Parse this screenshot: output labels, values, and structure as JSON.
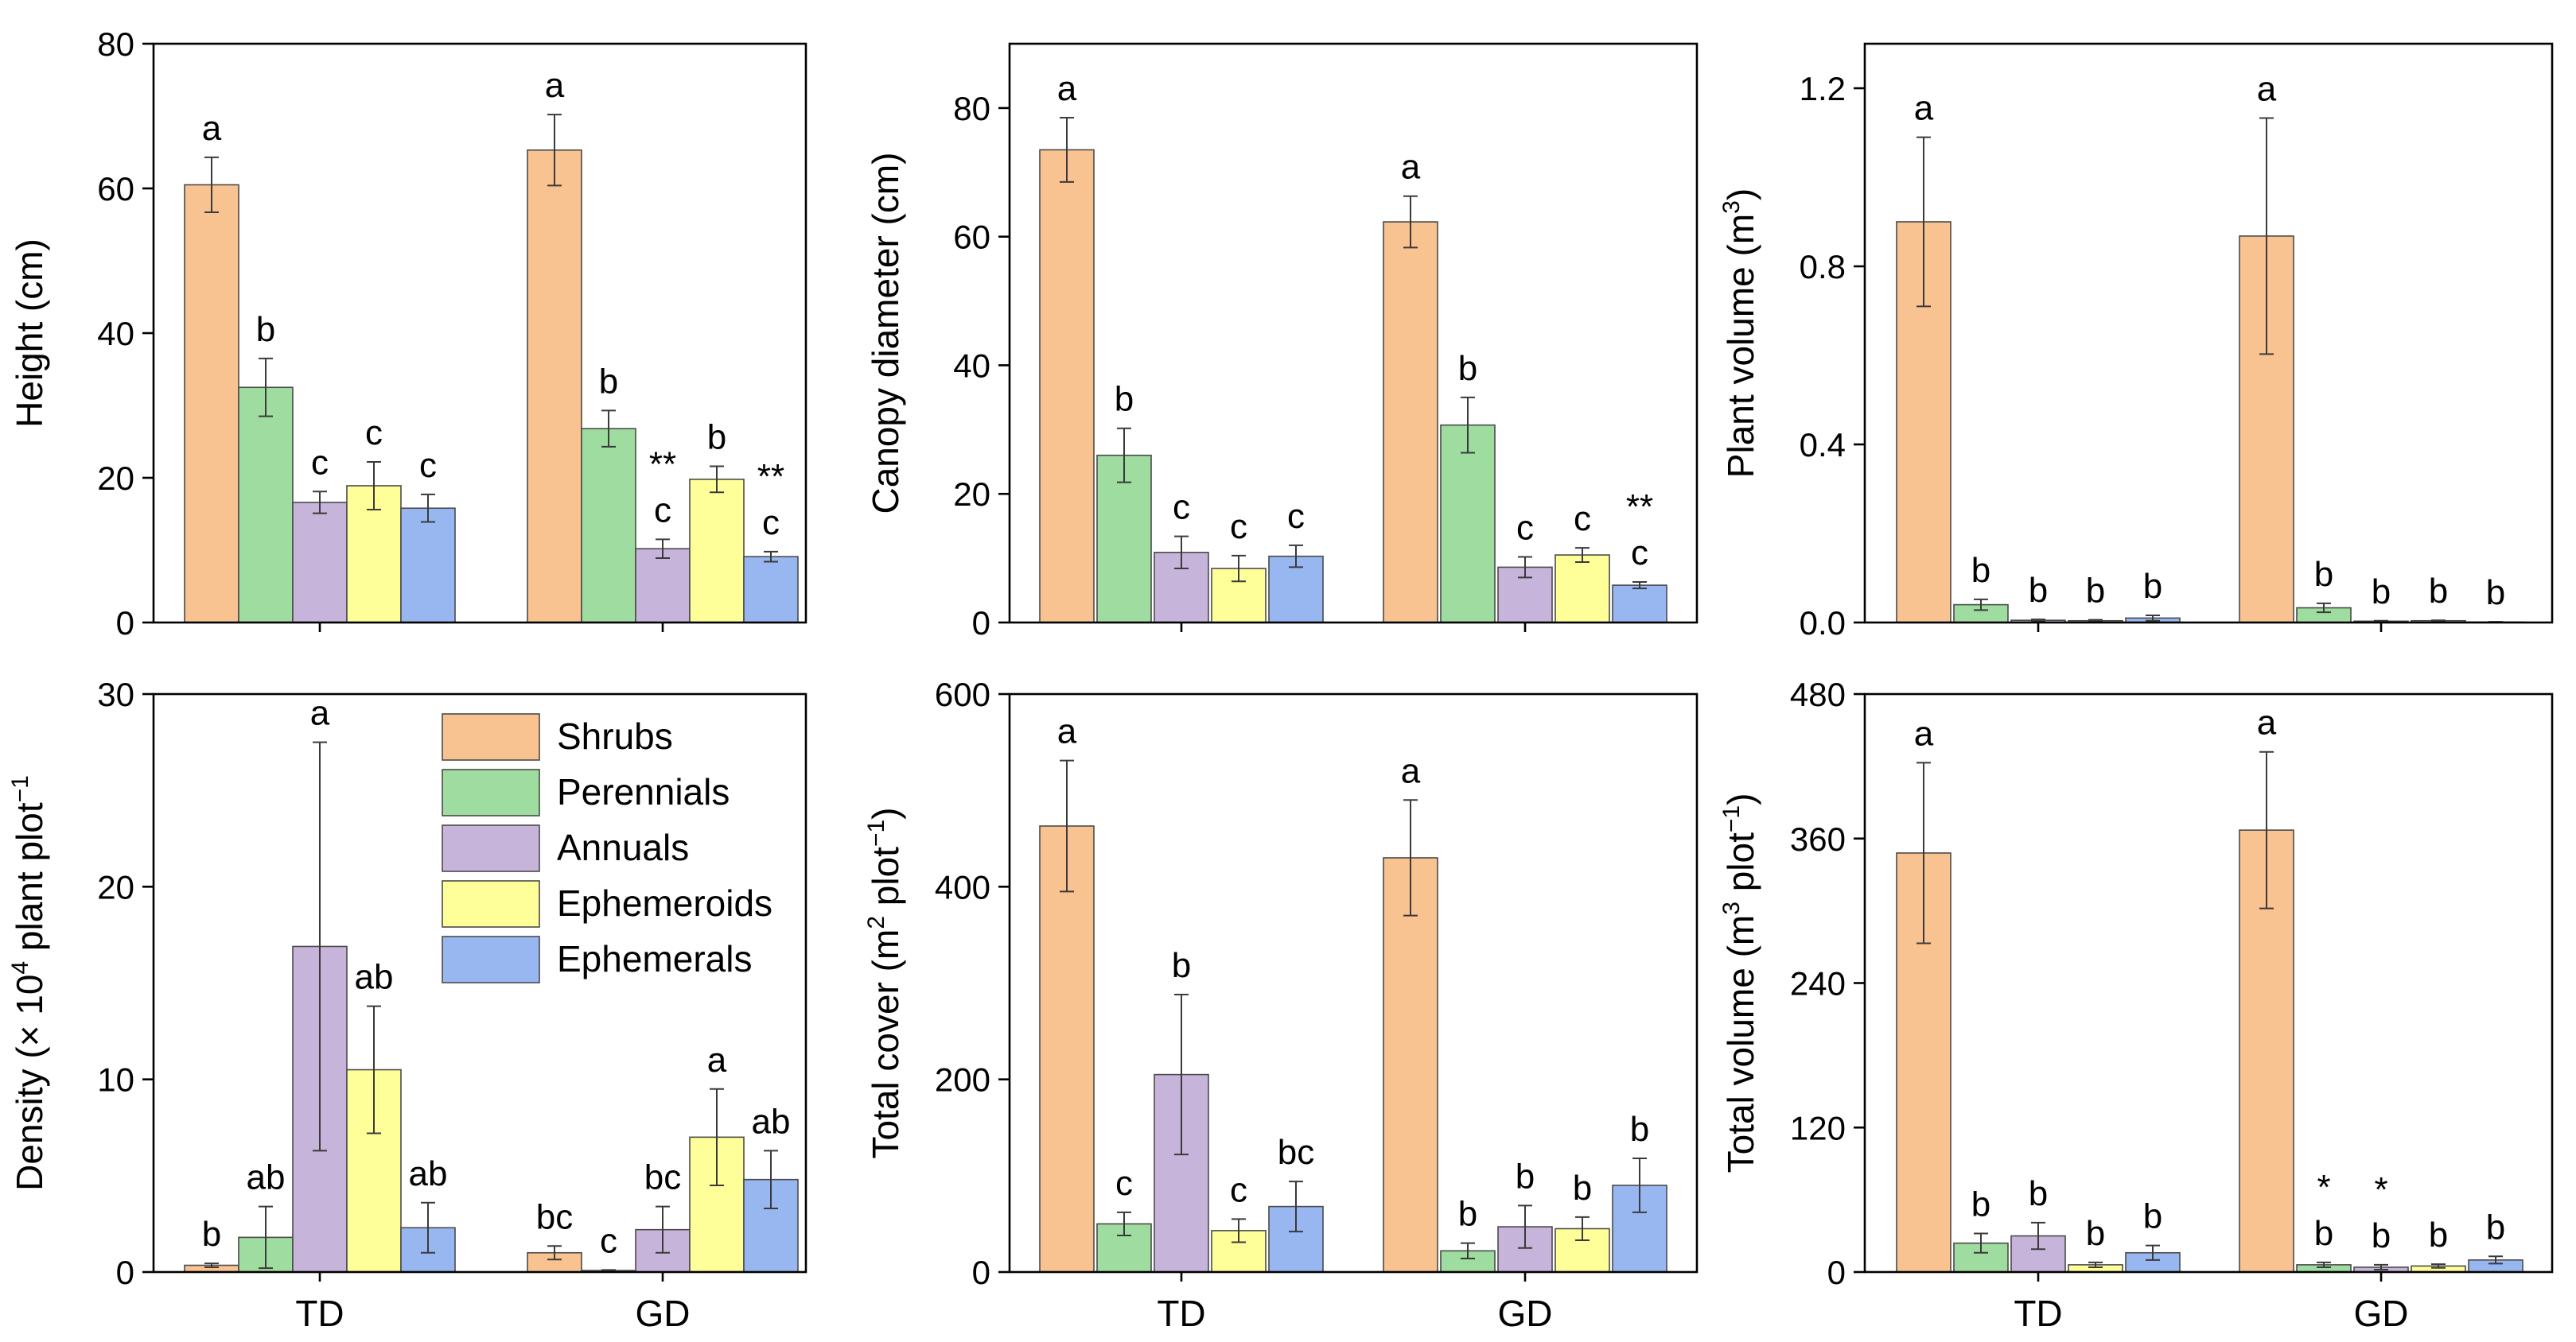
{
  "legend": {
    "items": [
      {
        "name": "Shrubs",
        "color": "#F9C291"
      },
      {
        "name": "Perennials",
        "color": "#9FDC9F"
      },
      {
        "name": "Annuals",
        "color": "#C7B4DA"
      },
      {
        "name": "Ephemeroids",
        "color": "#FFFF99"
      },
      {
        "name": "Ephemerals",
        "color": "#98B7F1"
      }
    ]
  },
  "chart_data": [
    {
      "id": "height",
      "type": "bar",
      "ylabel_main": "Height (cm)",
      "ylabel_sup": "",
      "ylabel_end": "",
      "ylim": [
        0,
        80
      ],
      "yticks": [
        "0",
        "20",
        "40",
        "60",
        "80"
      ],
      "categories": [
        "TD",
        "GD"
      ],
      "series": [
        {
          "name": "Shrubs",
          "values": [
            60.5,
            65.3
          ],
          "errors": [
            3.8,
            4.9
          ]
        },
        {
          "name": "Perennials",
          "values": [
            32.5,
            26.8
          ],
          "errors": [
            4.0,
            2.5
          ]
        },
        {
          "name": "Annuals",
          "values": [
            16.6,
            10.2
          ],
          "errors": [
            1.5,
            1.3
          ]
        },
        {
          "name": "Ephemeroids",
          "values": [
            18.9,
            19.8
          ],
          "errors": [
            3.3,
            1.8
          ]
        },
        {
          "name": "Ephemerals",
          "values": [
            15.8,
            9.1
          ],
          "errors": [
            1.9,
            0.7
          ]
        }
      ],
      "letters": [
        [
          "a",
          "b",
          "c",
          "c",
          "c"
        ],
        [
          "a",
          "b",
          "c",
          "b",
          "c"
        ]
      ],
      "marks": [
        [
          "",
          "",
          "",
          "",
          ""
        ],
        [
          "",
          "",
          "**",
          "",
          "**"
        ]
      ]
    },
    {
      "id": "canopy",
      "type": "bar",
      "ylabel_main": "Canopy diameter (cm)",
      "ylabel_sup": "",
      "ylabel_end": "",
      "ylim": [
        0,
        90
      ],
      "yticks": [
        "0",
        "20",
        "40",
        "60",
        "80"
      ],
      "categories": [
        "TD",
        "GD"
      ],
      "series": [
        {
          "name": "Shrubs",
          "values": [
            73.5,
            62.3
          ],
          "errors": [
            5.0,
            4.0
          ]
        },
        {
          "name": "Perennials",
          "values": [
            26.0,
            30.7
          ],
          "errors": [
            4.2,
            4.3
          ]
        },
        {
          "name": "Annuals",
          "values": [
            10.9,
            8.6
          ],
          "errors": [
            2.5,
            1.6
          ]
        },
        {
          "name": "Ephemeroids",
          "values": [
            8.4,
            10.5
          ],
          "errors": [
            2.0,
            1.1
          ]
        },
        {
          "name": "Ephemerals",
          "values": [
            10.3,
            5.8
          ],
          "errors": [
            1.7,
            0.5
          ]
        }
      ],
      "letters": [
        [
          "a",
          "b",
          "c",
          "c",
          "c"
        ],
        [
          "a",
          "b",
          "c",
          "c",
          "c"
        ]
      ],
      "marks": [
        [
          "",
          "",
          "",
          "",
          ""
        ],
        [
          "",
          "",
          "",
          "",
          "**"
        ]
      ]
    },
    {
      "id": "plant-volume",
      "type": "bar",
      "ylabel_main": "Plant volume (m",
      "ylabel_sup": "3",
      "ylabel_end": ")",
      "ylim": [
        0,
        1.3
      ],
      "yticks": [
        "0.0",
        "0.4",
        "0.8",
        "1.2"
      ],
      "categories": [
        "TD",
        "GD"
      ],
      "series": [
        {
          "name": "Shrubs",
          "values": [
            0.9,
            0.868
          ],
          "errors": [
            0.19,
            0.265
          ]
        },
        {
          "name": "Perennials",
          "values": [
            0.04,
            0.033
          ],
          "errors": [
            0.012,
            0.01
          ]
        },
        {
          "name": "Annuals",
          "values": [
            0.005,
            0.003
          ],
          "errors": [
            0.002,
            0.001
          ]
        },
        {
          "name": "Ephemeroids",
          "values": [
            0.004,
            0.004
          ],
          "errors": [
            0.002,
            0.001
          ]
        },
        {
          "name": "Ephemerals",
          "values": [
            0.01,
            0.001
          ],
          "errors": [
            0.006,
            0.0005
          ]
        }
      ],
      "letters": [
        [
          "a",
          "b",
          "b",
          "b",
          "b"
        ],
        [
          "a",
          "b",
          "b",
          "b",
          "b"
        ]
      ],
      "marks": [
        [
          "",
          "",
          "",
          "",
          ""
        ],
        [
          "",
          "",
          "",
          "",
          ""
        ]
      ]
    },
    {
      "id": "density",
      "type": "bar",
      "ylabel_main": "Density (× 10",
      "ylabel_sup": "4",
      "ylabel_end": " plant plot",
      "ylabel_sup2": "−1",
      "ylim": [
        0,
        30
      ],
      "yticks": [
        "0",
        "10",
        "20",
        "30"
      ],
      "categories": [
        "TD",
        "GD"
      ],
      "series": [
        {
          "name": "Shrubs",
          "values": [
            0.35,
            1.0
          ],
          "errors": [
            0.1,
            0.35
          ]
        },
        {
          "name": "Perennials",
          "values": [
            1.8,
            0.08
          ],
          "errors": [
            1.6,
            0.03
          ]
        },
        {
          "name": "Annuals",
          "values": [
            16.9,
            2.2
          ],
          "errors": [
            10.6,
            1.2
          ]
        },
        {
          "name": "Ephemeroids",
          "values": [
            10.5,
            7.0
          ],
          "errors": [
            3.3,
            2.5
          ]
        },
        {
          "name": "Ephemerals",
          "values": [
            2.3,
            4.8
          ],
          "errors": [
            1.3,
            1.5
          ]
        }
      ],
      "letters": [
        [
          "b",
          "ab",
          "a",
          "ab",
          "ab"
        ],
        [
          "bc",
          "c",
          "bc",
          "a",
          "ab"
        ]
      ],
      "marks": [
        [
          "",
          "",
          "",
          "",
          ""
        ],
        [
          "",
          "",
          "",
          "",
          ""
        ]
      ]
    },
    {
      "id": "total-cover",
      "type": "bar",
      "ylabel_main": "Total cover (m",
      "ylabel_sup": "2",
      "ylabel_end": " plot",
      "ylabel_sup2": "−1",
      "ylabel_end2": ")",
      "ylim": [
        0,
        600
      ],
      "yticks": [
        "0",
        "200",
        "400",
        "600"
      ],
      "categories": [
        "TD",
        "GD"
      ],
      "series": [
        {
          "name": "Shrubs",
          "values": [
            463,
            430
          ],
          "errors": [
            68,
            60
          ]
        },
        {
          "name": "Perennials",
          "values": [
            50,
            22
          ],
          "errors": [
            12,
            8
          ]
        },
        {
          "name": "Annuals",
          "values": [
            205,
            47
          ],
          "errors": [
            83,
            22
          ]
        },
        {
          "name": "Ephemeroids",
          "values": [
            43,
            45
          ],
          "errors": [
            12,
            12
          ]
        },
        {
          "name": "Ephemerals",
          "values": [
            68,
            90
          ],
          "errors": [
            26,
            28
          ]
        }
      ],
      "letters": [
        [
          "a",
          "c",
          "b",
          "c",
          "bc"
        ],
        [
          "a",
          "b",
          "b",
          "b",
          "b"
        ]
      ],
      "marks": [
        [
          "",
          "",
          "",
          "",
          ""
        ],
        [
          "",
          "",
          "",
          "",
          ""
        ]
      ]
    },
    {
      "id": "total-volume",
      "type": "bar",
      "ylabel_main": "Total volume (m",
      "ylabel_sup": "3",
      "ylabel_end": " plot",
      "ylabel_sup2": "−1",
      "ylabel_end2": ")",
      "ylim": [
        0,
        480
      ],
      "yticks": [
        "0",
        "120",
        "240",
        "360",
        "480"
      ],
      "categories": [
        "TD",
        "GD"
      ],
      "series": [
        {
          "name": "Shrubs",
          "values": [
            348,
            367
          ],
          "errors": [
            75,
            65
          ]
        },
        {
          "name": "Perennials",
          "values": [
            24,
            6
          ],
          "errors": [
            8,
            2
          ]
        },
        {
          "name": "Annuals",
          "values": [
            30,
            4
          ],
          "errors": [
            11,
            2
          ]
        },
        {
          "name": "Ephemeroids",
          "values": [
            6,
            5
          ],
          "errors": [
            2,
            1.5
          ]
        },
        {
          "name": "Ephemerals",
          "values": [
            16,
            10
          ],
          "errors": [
            6,
            3
          ]
        }
      ],
      "letters": [
        [
          "a",
          "b",
          "b",
          "b",
          "b"
        ],
        [
          "a",
          "b",
          "b",
          "b",
          "b"
        ]
      ],
      "marks": [
        [
          "",
          "",
          "",
          "",
          ""
        ],
        [
          "",
          "*",
          "*",
          "",
          ""
        ]
      ]
    }
  ]
}
